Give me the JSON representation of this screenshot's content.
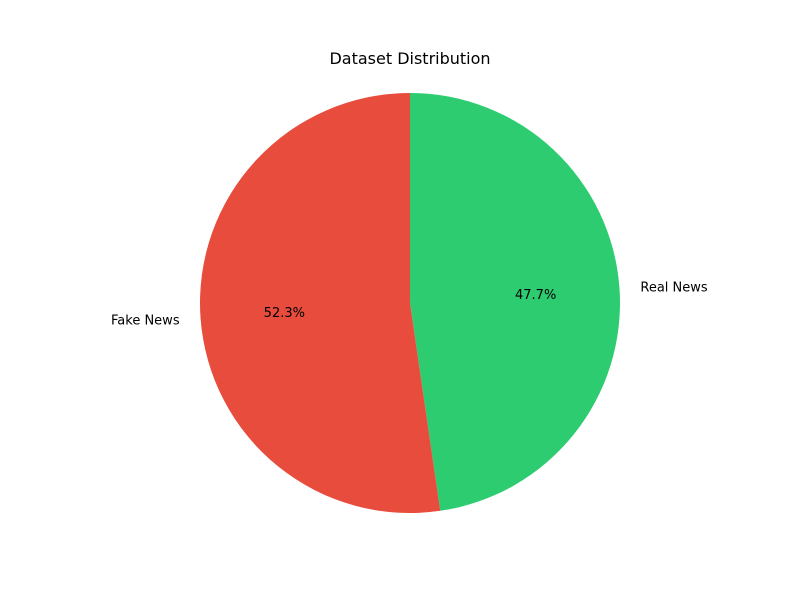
{
  "chart_data": {
    "type": "pie",
    "title": "Dataset Distribution",
    "slices": [
      {
        "label": "Real News",
        "value": 47.7,
        "pct_label": "47.7%",
        "color": "#2ecc71"
      },
      {
        "label": "Fake News",
        "value": 52.3,
        "pct_label": "52.3%",
        "color": "#e74c3c"
      }
    ],
    "start_angle_deg": 90,
    "direction": "clockwise",
    "legend": "none"
  }
}
